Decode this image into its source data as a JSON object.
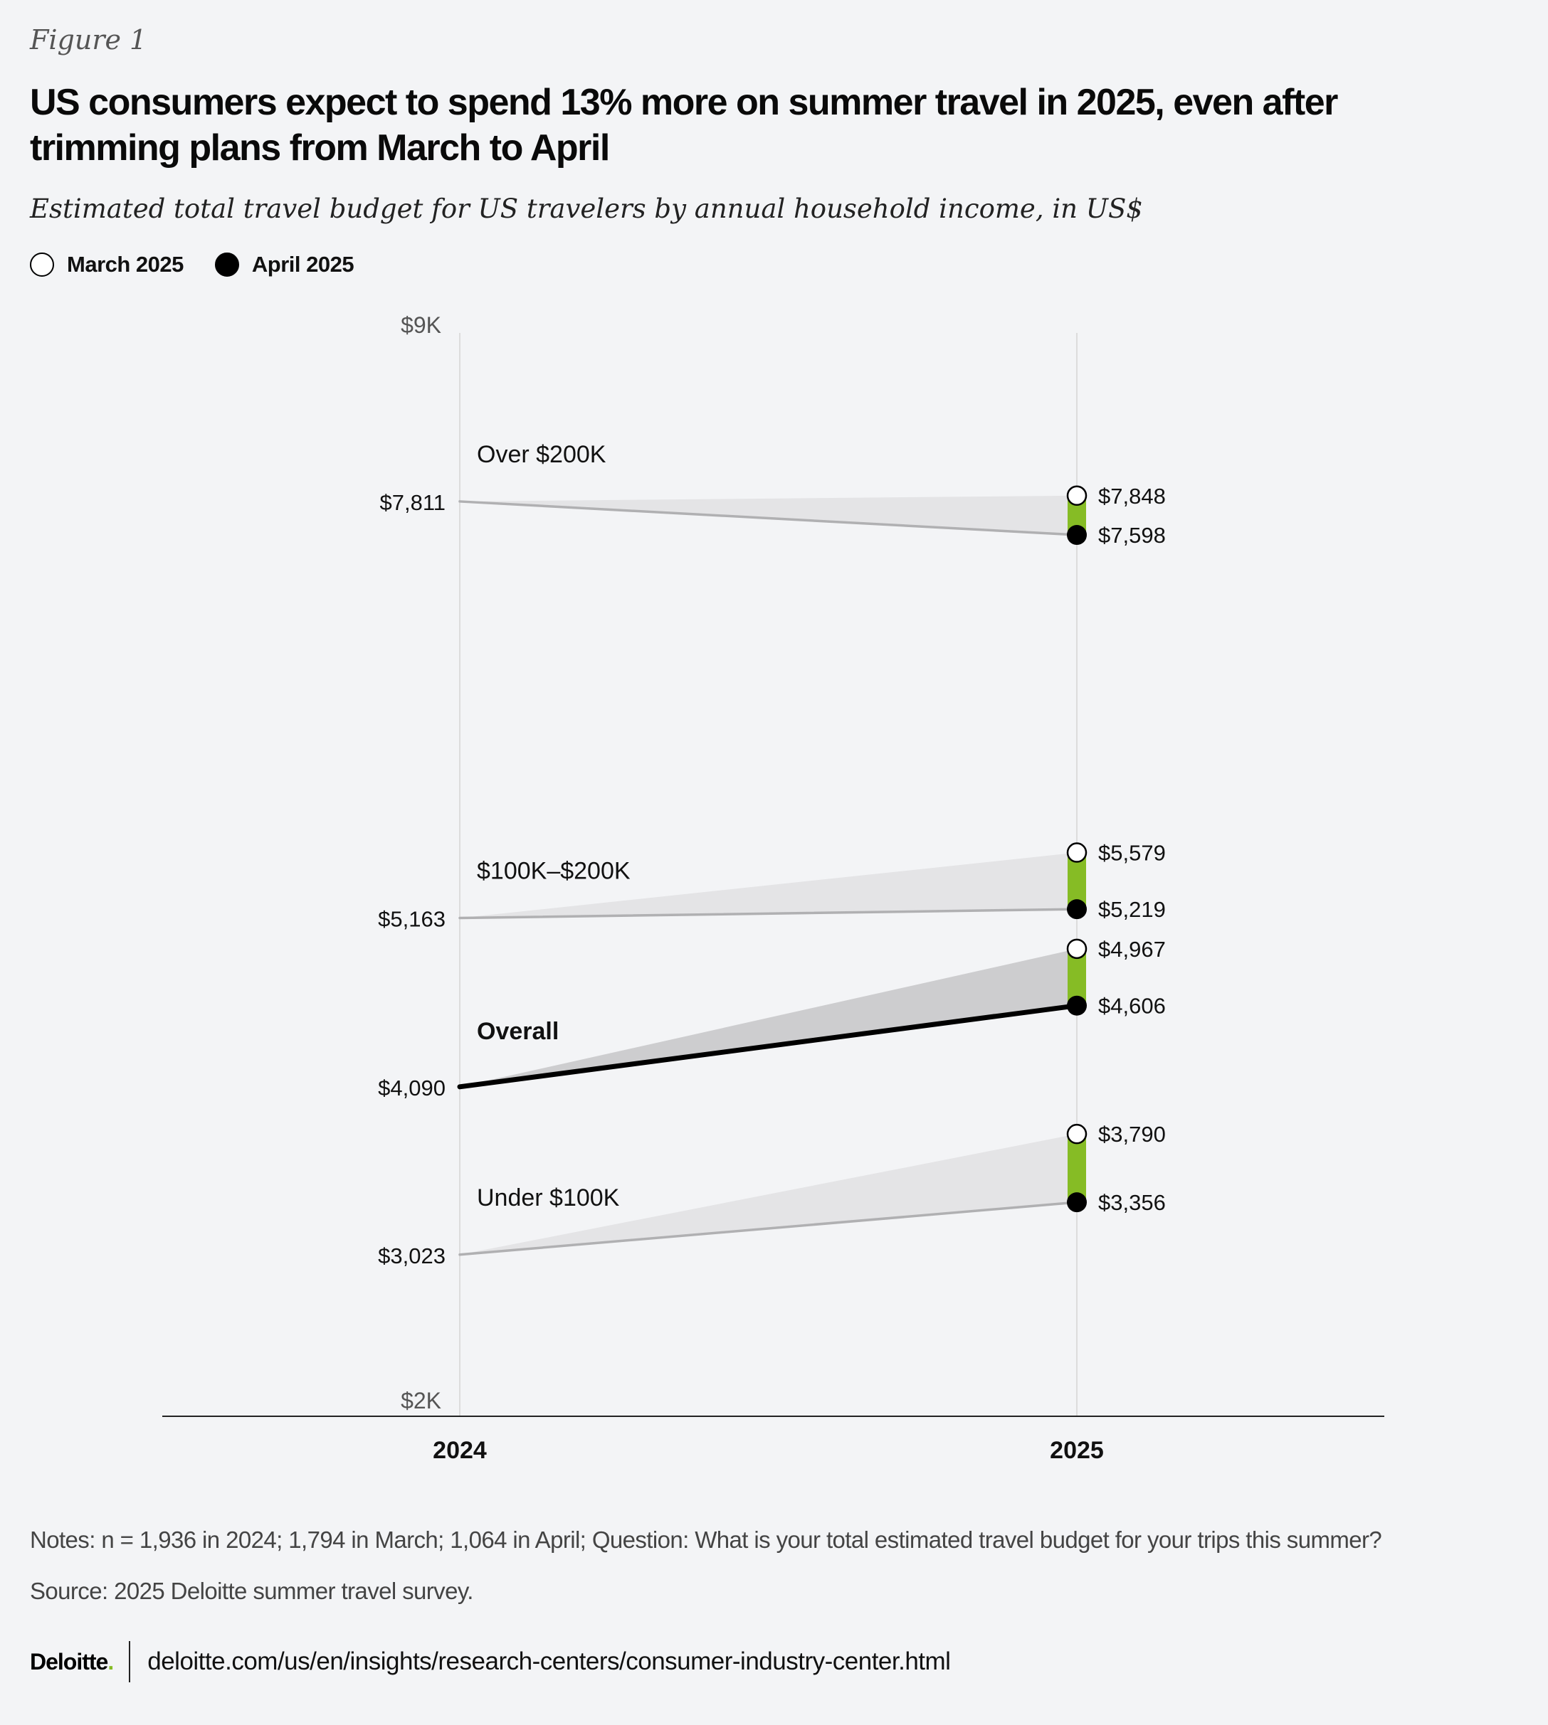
{
  "figure_label": "Figure 1",
  "title": "US consumers expect to spend 13% more on summer travel in 2025, even after trimming plans from March to April",
  "subtitle": "Estimated total travel budget for US travelers by annual household income, in US$",
  "legend": {
    "march": "March 2025",
    "april": "April 2025"
  },
  "colors": {
    "background": "#f3f4f6",
    "band_light": "#e4e4e6",
    "band_dark": "#cdcdcf",
    "line_gray": "#b0b0b2",
    "line_overall": "#000000",
    "change_green": "#86bc25",
    "gridline": "#dcdcdc",
    "axis": "#222222"
  },
  "chart_data": {
    "type": "line",
    "title": "US consumers expect to spend 13% more on summer travel in 2025, even after trimming plans from March to April",
    "x": [
      "2024",
      "2025"
    ],
    "ylim": [
      2000,
      9000
    ],
    "y_tick_labels": [
      {
        "value": 9000,
        "label": "$9K"
      },
      {
        "value": 2000,
        "label": "$2K"
      }
    ],
    "series": [
      {
        "name": "Over $200K",
        "emphasis": false,
        "v2024": 7811,
        "march2025": 7848,
        "april2025": 7598,
        "label_2024": "$7,811",
        "label_march": "$7,848",
        "label_april": "$7,598"
      },
      {
        "name": "$100K–$200K",
        "emphasis": false,
        "v2024": 5163,
        "march2025": 5579,
        "april2025": 5219,
        "label_2024": "$5,163",
        "label_march": "$5,579",
        "label_april": "$5,219"
      },
      {
        "name": "Overall",
        "emphasis": true,
        "v2024": 4090,
        "march2025": 4967,
        "april2025": 4606,
        "label_2024": "$4,090",
        "label_march": "$4,967",
        "label_april": "$4,606"
      },
      {
        "name": "Under $100K",
        "emphasis": false,
        "v2024": 3023,
        "march2025": 3790,
        "april2025": 3356,
        "label_2024": "$3,023",
        "label_march": "$3,790",
        "label_april": "$3,356"
      }
    ]
  },
  "notes": "Notes: n = 1,936 in 2024; 1,794 in March; 1,064 in April; Question: What is your total estimated travel budget for your trips this summer?",
  "source": "Source: 2025 Deloitte summer travel survey.",
  "footer": {
    "brand": "Deloitte",
    "brand_dot": ".",
    "url": "deloitte.com/us/en/insights/research-centers/consumer-industry-center.html"
  }
}
